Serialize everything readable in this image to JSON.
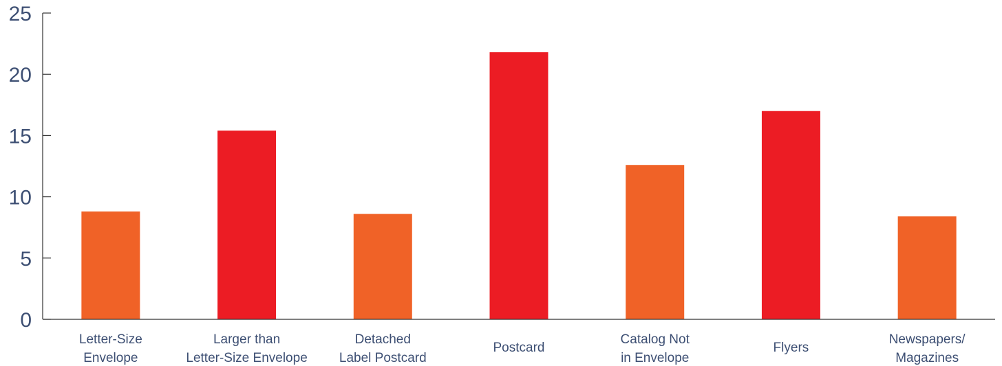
{
  "chart_data": {
    "type": "bar",
    "categories": [
      [
        "Letter-Size",
        "Envelope"
      ],
      [
        "Larger than",
        "Letter-Size Envelope"
      ],
      [
        "Detached",
        "Label Postcard"
      ],
      [
        "Postcard"
      ],
      [
        "Catalog Not",
        "in Envelope"
      ],
      [
        "Flyers"
      ],
      [
        "Newspapers/",
        "Magazines"
      ]
    ],
    "values": [
      8.8,
      15.4,
      8.6,
      21.8,
      12.6,
      17.0,
      8.4
    ],
    "bar_colors": [
      "#f06227",
      "#ec1c24",
      "#f06227",
      "#ec1c24",
      "#f06227",
      "#ec1c24",
      "#f06227"
    ],
    "ylim": [
      0,
      25
    ],
    "yticks": [
      0,
      5,
      10,
      15,
      20,
      25
    ],
    "title": "",
    "xlabel": "",
    "ylabel": "",
    "grid": false,
    "colors": {
      "orange": "#f06227",
      "red": "#ec1c24",
      "label_text": "#3d4f73",
      "axis": "#333333"
    }
  }
}
